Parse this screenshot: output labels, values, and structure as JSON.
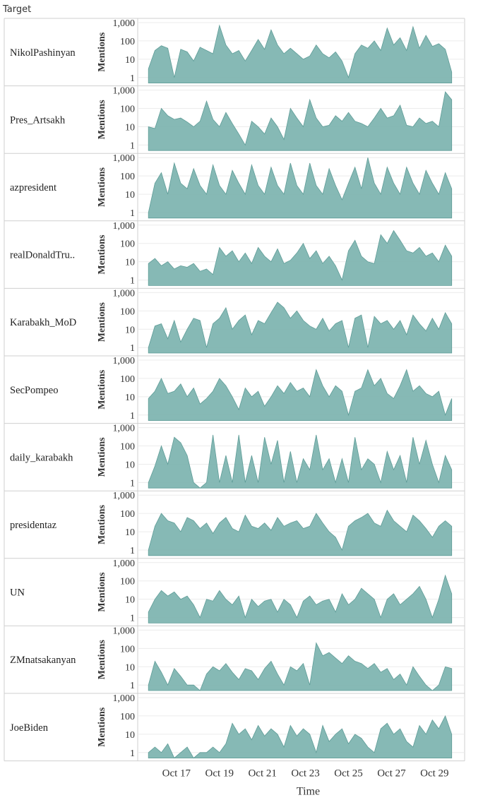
{
  "header": {
    "label": "Target"
  },
  "chart_data": {
    "type": "area",
    "title": "",
    "xlabel": "Time",
    "ylabel": "Mentions",
    "y_scale": "log",
    "y_ticks": [
      1,
      10,
      100,
      1000
    ],
    "y_tick_labels": [
      "1",
      "10",
      "100",
      "1,000"
    ],
    "ylim": [
      0.5,
      1000
    ],
    "x_ticks": [
      "Oct 17",
      "Oct 19",
      "Oct 21",
      "Oct 23",
      "Oct 25",
      "Oct 27",
      "Oct 29"
    ],
    "x_tick_days": [
      17,
      19,
      21,
      23,
      25,
      27,
      29
    ],
    "xlim_days": [
      15.2,
      30.4
    ],
    "x_points": [
      15.7,
      16.0,
      16.3,
      16.6,
      16.9,
      17.2,
      17.5,
      17.8,
      18.1,
      18.4,
      18.7,
      19.0,
      19.3,
      19.6,
      19.9,
      20.2,
      20.5,
      20.8,
      21.1,
      21.4,
      21.7,
      22.0,
      22.3,
      22.6,
      22.9,
      23.2,
      23.5,
      23.8,
      24.1,
      24.4,
      24.7,
      25.0,
      25.3,
      25.6,
      25.9,
      26.2,
      26.5,
      26.8,
      27.1,
      27.4,
      27.7,
      28.0,
      28.3,
      28.6,
      28.9,
      29.2,
      29.5,
      29.8
    ],
    "grid": true,
    "fill_color": "#7fb5b1",
    "stroke_color": "#5e9c97",
    "series": [
      {
        "name": "NikolPashinyan",
        "values": [
          3,
          30,
          55,
          40,
          1,
          35,
          25,
          8,
          45,
          30,
          20,
          700,
          60,
          20,
          30,
          8,
          30,
          120,
          35,
          400,
          60,
          20,
          40,
          20,
          10,
          15,
          60,
          20,
          12,
          25,
          8,
          1,
          20,
          60,
          40,
          100,
          30,
          500,
          60,
          150,
          30,
          600,
          40,
          200,
          50,
          70,
          35,
          2
        ]
      },
      {
        "name": "Pres_Artsakh",
        "values": [
          10,
          8,
          100,
          40,
          25,
          30,
          18,
          10,
          20,
          250,
          25,
          10,
          60,
          15,
          4,
          1,
          20,
          10,
          4,
          30,
          10,
          2,
          100,
          30,
          10,
          300,
          30,
          10,
          12,
          40,
          20,
          60,
          20,
          15,
          10,
          30,
          100,
          30,
          40,
          150,
          12,
          10,
          30,
          15,
          20,
          10,
          800,
          300
        ]
      },
      {
        "name": "azpresident",
        "values": [
          1,
          40,
          150,
          10,
          500,
          40,
          20,
          250,
          30,
          10,
          400,
          30,
          10,
          200,
          40,
          10,
          400,
          30,
          10,
          300,
          30,
          10,
          500,
          30,
          10,
          500,
          30,
          10,
          250,
          30,
          5,
          40,
          300,
          20,
          1000,
          40,
          10,
          300,
          40,
          10,
          300,
          40,
          10,
          200,
          40,
          10,
          150,
          20
        ]
      },
      {
        "name": "realDonaldTrump",
        "values": [
          8,
          15,
          6,
          10,
          4,
          6,
          5,
          8,
          3,
          4,
          2,
          60,
          20,
          40,
          10,
          30,
          8,
          60,
          20,
          10,
          50,
          8,
          12,
          30,
          100,
          15,
          40,
          8,
          20,
          6,
          1,
          40,
          150,
          20,
          10,
          8,
          300,
          100,
          500,
          150,
          40,
          30,
          60,
          20,
          30,
          10,
          80,
          20
        ]
      },
      {
        "name": "Karabakh_MoD",
        "values": [
          1,
          15,
          20,
          3,
          30,
          2,
          10,
          40,
          30,
          1,
          20,
          40,
          150,
          10,
          30,
          60,
          5,
          30,
          20,
          80,
          300,
          150,
          40,
          100,
          30,
          15,
          10,
          40,
          8,
          20,
          30,
          1,
          40,
          60,
          1,
          50,
          20,
          30,
          10,
          30,
          5,
          60,
          20,
          8,
          40,
          10,
          80,
          20
        ]
      },
      {
        "name": "SecPompeo",
        "values": [
          8,
          20,
          100,
          15,
          20,
          50,
          10,
          30,
          4,
          8,
          20,
          100,
          40,
          10,
          2,
          30,
          10,
          20,
          3,
          10,
          40,
          15,
          60,
          20,
          30,
          10,
          300,
          40,
          10,
          40,
          20,
          1,
          20,
          30,
          300,
          40,
          100,
          15,
          8,
          40,
          300,
          20,
          40,
          15,
          10,
          20,
          1,
          8
        ]
      },
      {
        "name": "daily_karabakh",
        "values": [
          1,
          8,
          100,
          10,
          300,
          150,
          30,
          1,
          0,
          1,
          400,
          1,
          30,
          1,
          400,
          1,
          30,
          1,
          300,
          10,
          200,
          1,
          50,
          1,
          20,
          5,
          400,
          5,
          20,
          1,
          20,
          1,
          300,
          5,
          20,
          10,
          1,
          50,
          5,
          30,
          1,
          300,
          10,
          200,
          10,
          1,
          30,
          5
        ]
      },
      {
        "name": "presidentaz",
        "values": [
          1,
          20,
          100,
          40,
          30,
          10,
          60,
          40,
          15,
          30,
          8,
          30,
          60,
          15,
          10,
          80,
          20,
          15,
          30,
          12,
          60,
          20,
          30,
          40,
          15,
          20,
          100,
          30,
          10,
          5,
          1,
          20,
          40,
          60,
          100,
          30,
          20,
          150,
          40,
          20,
          10,
          80,
          40,
          15,
          5,
          20,
          40,
          20
        ]
      },
      {
        "name": "UN",
        "values": [
          2,
          10,
          30,
          15,
          25,
          10,
          15,
          5,
          1,
          10,
          8,
          30,
          10,
          5,
          15,
          1,
          10,
          4,
          8,
          10,
          2,
          10,
          5,
          1,
          8,
          15,
          5,
          8,
          10,
          2,
          20,
          5,
          10,
          40,
          20,
          10,
          1,
          10,
          20,
          5,
          10,
          20,
          50,
          10,
          1,
          10,
          200,
          20
        ]
      },
      {
        "name": "ZMnatsakanyan",
        "values": [
          1,
          20,
          5,
          1,
          8,
          3,
          1,
          1,
          0,
          4,
          10,
          6,
          15,
          5,
          2,
          8,
          6,
          2,
          8,
          20,
          4,
          1,
          10,
          6,
          15,
          1,
          200,
          40,
          60,
          30,
          15,
          40,
          20,
          15,
          8,
          15,
          5,
          8,
          2,
          4,
          1,
          10,
          3,
          1,
          0,
          1,
          10,
          8
        ]
      },
      {
        "name": "JoeBiden",
        "values": [
          1,
          2,
          1,
          3,
          0,
          1,
          2,
          0,
          1,
          1,
          2,
          1,
          3,
          40,
          10,
          20,
          5,
          30,
          8,
          20,
          10,
          2,
          30,
          8,
          20,
          10,
          1,
          30,
          4,
          10,
          20,
          3,
          10,
          6,
          2,
          1,
          20,
          40,
          10,
          20,
          4,
          2,
          30,
          10,
          60,
          20,
          100,
          10
        ]
      }
    ],
    "panel_labels": [
      "NikolPashinyan",
      "Pres_Artsakh",
      "azpresident",
      "realDonaldTru..",
      "Karabakh_MoD",
      "SecPompeo",
      "daily_karabakh",
      "presidentaz",
      "UN",
      "ZMnatsakanyan",
      "JoeBiden"
    ]
  }
}
